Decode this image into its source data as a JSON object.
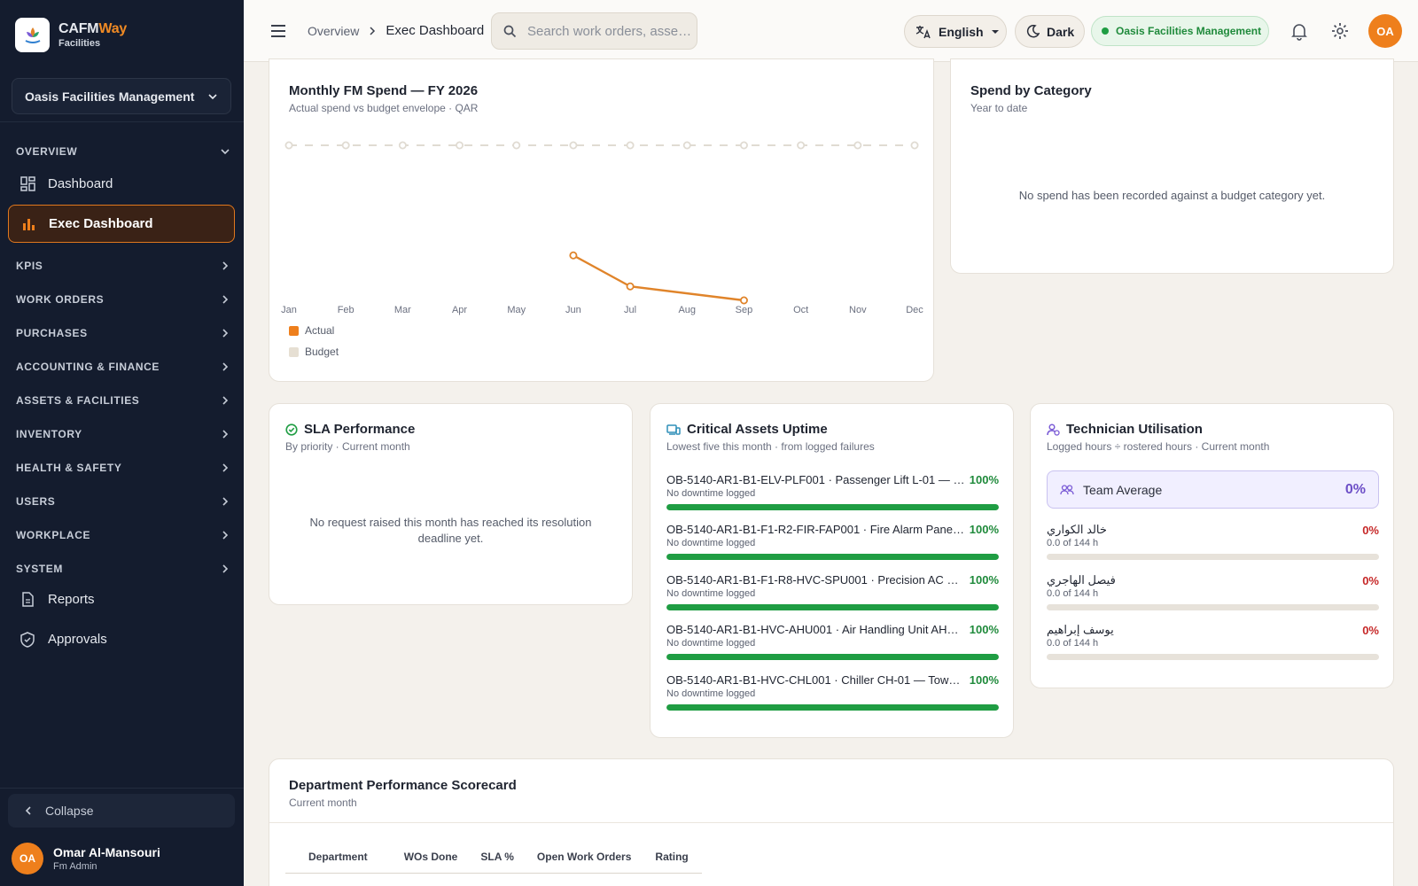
{
  "brand": {
    "name_main": "CAFM",
    "name_accent": "Way",
    "sub": "Facilities"
  },
  "sidebar": {
    "org": "Oasis Facilities Management",
    "overview_label": "OVERVIEW",
    "items": [
      {
        "label": "Dashboard"
      },
      {
        "label": "Exec Dashboard"
      }
    ],
    "sections": [
      "KPIS",
      "WORK ORDERS",
      "PURCHASES",
      "ACCOUNTING & FINANCE",
      "ASSETS & FACILITIES",
      "INVENTORY",
      "HEALTH & SAFETY",
      "USERS",
      "WORKPLACE",
      "SYSTEM"
    ],
    "bottom_items": [
      {
        "label": "Reports"
      },
      {
        "label": "Approvals"
      }
    ],
    "collapse": "Collapse",
    "user": {
      "initials": "OA",
      "name": "Omar Al-Mansouri",
      "role": "Fm Admin"
    }
  },
  "topbar": {
    "breadcrumb_parent": "Overview",
    "breadcrumb_current": "Exec Dashboard",
    "search_placeholder": "Search work orders, asse…",
    "language": "English",
    "theme": "Dark",
    "org_badge": "Oasis Facilities Management",
    "avatar": "OA"
  },
  "colors": {
    "accent": "#ee7f1c",
    "success": "#1f9d43",
    "danger": "#c62828",
    "sidebar_bg": "#141c2e"
  },
  "spend": {
    "title": "Monthly FM Spend — FY 2026",
    "subtitle": "Actual spend vs budget envelope · QAR",
    "legend_actual": "Actual",
    "legend_budget": "Budget"
  },
  "chart_data": {
    "type": "line",
    "categories": [
      "Jan",
      "Feb",
      "Mar",
      "Apr",
      "May",
      "Jun",
      "Jul",
      "Aug",
      "Sep",
      "Oct",
      "Nov",
      "Dec"
    ],
    "series": [
      {
        "name": "Actual",
        "color": "#e0842a",
        "style": "solid",
        "values": [
          null,
          null,
          null,
          null,
          null,
          0.29,
          0.09,
          null,
          0.0,
          null,
          null,
          null
        ]
      },
      {
        "name": "Budget",
        "color": "#e0dbd2",
        "style": "dashed",
        "values": [
          1,
          1,
          1,
          1,
          1,
          1,
          1,
          1,
          1,
          1,
          1,
          1
        ]
      }
    ],
    "title": "Monthly FM Spend — FY 2026",
    "ylim": [
      0,
      1
    ],
    "grid": false,
    "legend": "bottom-left"
  },
  "category": {
    "title": "Spend by Category",
    "subtitle": "Year to date",
    "empty": "No spend has been recorded against a budget category yet."
  },
  "sla": {
    "title": "SLA Performance",
    "subtitle": "By priority · Current month",
    "empty": "No request raised this month has reached its resolution deadline yet."
  },
  "assets": {
    "title": "Critical Assets Uptime",
    "subtitle": "Lowest five this month · from logged failures",
    "rows": [
      {
        "name": "OB-5140-AR1-B1-ELV-PLF001 · Passenger Lift L-01 — …",
        "note": "No downtime logged",
        "pct": "100%",
        "value": 1.0
      },
      {
        "name": "OB-5140-AR1-B1-F1-R2-FIR-FAP001 · Fire Alarm Panel…",
        "note": "No downtime logged",
        "pct": "100%",
        "value": 1.0
      },
      {
        "name": "OB-5140-AR1-B1-F1-R8-HVC-SPU001 · Precision AC —…",
        "note": "No downtime logged",
        "pct": "100%",
        "value": 1.0
      },
      {
        "name": "OB-5140-AR1-B1-HVC-AHU001 · Air Handling Unit AH…",
        "note": "No downtime logged",
        "pct": "100%",
        "value": 1.0
      },
      {
        "name": "OB-5140-AR1-B1-HVC-CHL001 · Chiller CH-01 — Towe…",
        "note": "No downtime logged",
        "pct": "100%",
        "value": 1.0
      }
    ]
  },
  "tech": {
    "title": "Technician Utilisation",
    "subtitle": "Logged hours ÷ rostered hours · Current month",
    "team_avg_label": "Team Average",
    "team_avg_value": "0%",
    "rows": [
      {
        "name": "خالد الكواري",
        "hours": "0.0 of 144 h",
        "pct": "0%"
      },
      {
        "name": "فيصل الهاجري",
        "hours": "0.0 of 144 h",
        "pct": "0%"
      },
      {
        "name": "يوسف إبراهيم",
        "hours": "0.0 of 144 h",
        "pct": "0%"
      }
    ]
  },
  "dept": {
    "title": "Department Performance Scorecard",
    "subtitle": "Current month",
    "columns": [
      "Department",
      "WOs Done",
      "SLA %",
      "Open Work Orders",
      "Rating"
    ]
  }
}
